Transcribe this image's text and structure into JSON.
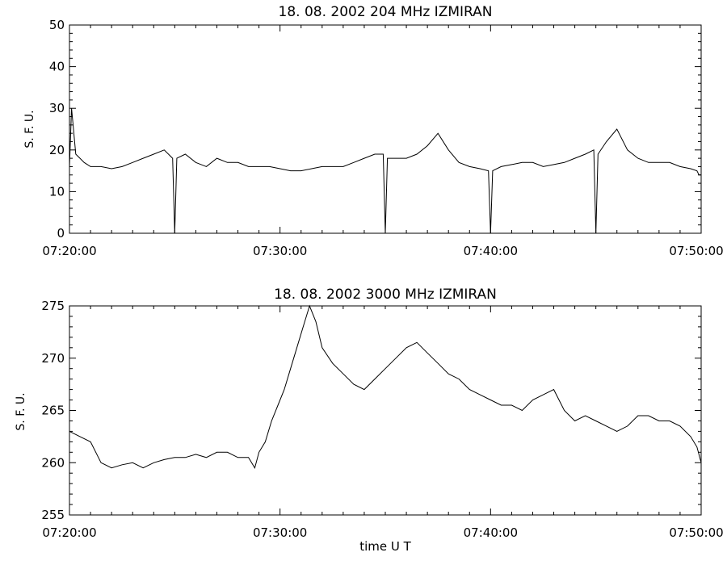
{
  "chart_data": [
    {
      "type": "line",
      "title": "18.  08.  2002    204 MHz    IZMIRAN",
      "xlabel": "",
      "ylabel": "S. F. U.",
      "xlim": [
        "07:20:00",
        "07:50:00"
      ],
      "ylim": [
        0,
        50
      ],
      "x_ticks": [
        "07:20:00",
        "07:30:00",
        "07:40:00",
        "07:50:00"
      ],
      "y_ticks": [
        "0",
        "10",
        "20",
        "30",
        "40",
        "50"
      ],
      "y_tick_values": [
        0,
        10,
        20,
        30,
        40,
        50
      ],
      "x_minor_step_minutes": 1,
      "y_minor_step": 2,
      "grid": false,
      "series": [
        {
          "minutes_x": [
            0.0,
            0.1,
            0.3,
            0.5,
            0.7,
            1.0,
            1.5,
            2.0,
            2.5,
            3.0,
            3.5,
            4.0,
            4.5,
            4.9,
            5.0,
            5.1,
            5.5,
            6.0,
            6.5,
            7.0,
            7.5,
            8.0,
            8.5,
            9.0,
            9.5,
            10.0,
            10.5,
            11.0,
            11.5,
            12.0,
            12.5,
            13.0,
            13.5,
            14.0,
            14.5,
            14.9,
            15.0,
            15.1,
            15.5,
            16.0,
            16.5,
            17.0,
            17.5,
            18.0,
            18.5,
            19.0,
            19.5,
            19.9,
            20.0,
            20.1,
            20.5,
            21.0,
            21.5,
            22.0,
            22.5,
            23.0,
            23.5,
            24.0,
            24.5,
            24.9,
            25.0,
            25.1,
            25.5,
            26.0,
            26.5,
            27.0,
            27.5,
            28.0,
            28.5,
            29.0,
            29.5,
            29.8,
            29.9,
            30.0
          ],
          "values": [
            16,
            30,
            19,
            18,
            17,
            16,
            16,
            15.5,
            16,
            17,
            18,
            19,
            20,
            18,
            0,
            18,
            19,
            17,
            16,
            18,
            17,
            17,
            16,
            16,
            16,
            15.5,
            15,
            15,
            15.5,
            16,
            16,
            16,
            17,
            18,
            19,
            19,
            0,
            18,
            18,
            18,
            19,
            21,
            24,
            20,
            17,
            16,
            15.5,
            15,
            0,
            15,
            16,
            16.5,
            17,
            17,
            16,
            16.5,
            17,
            18,
            19,
            20,
            0,
            19,
            22,
            25,
            20,
            18,
            17,
            17,
            17,
            16,
            15.5,
            15,
            14,
            14
          ]
        }
      ]
    },
    {
      "type": "line",
      "title": "18.  08.  2002    3000 MHz    IZMIRAN",
      "xlabel": "time   U T",
      "ylabel": "S. F. U.",
      "xlim": [
        "07:20:00",
        "07:50:00"
      ],
      "ylim": [
        255,
        275
      ],
      "x_ticks": [
        "07:20:00",
        "07:30:00",
        "07:40:00",
        "07:50:00"
      ],
      "y_ticks": [
        "255",
        "260",
        "265",
        "270",
        "275"
      ],
      "y_tick_values": [
        255,
        260,
        265,
        270,
        275
      ],
      "x_minor_step_minutes": 1,
      "y_minor_step": 1,
      "grid": false,
      "series": [
        {
          "minutes_x": [
            0.0,
            0.5,
            1.0,
            1.5,
            2.0,
            2.5,
            3.0,
            3.5,
            4.0,
            4.5,
            5.0,
            5.5,
            6.0,
            6.5,
            7.0,
            7.5,
            8.0,
            8.5,
            8.8,
            9.0,
            9.3,
            9.6,
            9.9,
            10.2,
            10.5,
            10.8,
            11.1,
            11.4,
            11.7,
            12.0,
            12.5,
            13.0,
            13.5,
            14.0,
            14.5,
            15.0,
            15.5,
            16.0,
            16.5,
            17.0,
            17.5,
            18.0,
            18.5,
            19.0,
            19.5,
            20.0,
            20.5,
            21.0,
            21.5,
            22.0,
            22.5,
            23.0,
            23.5,
            24.0,
            24.5,
            25.0,
            25.5,
            26.0,
            26.5,
            27.0,
            27.5,
            28.0,
            28.5,
            29.0,
            29.5,
            29.8,
            30.0
          ],
          "values": [
            263,
            262.5,
            262,
            260,
            259.5,
            259.8,
            260,
            259.5,
            260,
            260.3,
            260.5,
            260.5,
            260.8,
            260.5,
            261,
            261,
            260.5,
            260.5,
            259.5,
            261,
            262,
            264,
            265.5,
            267,
            269,
            271,
            273,
            275,
            273.5,
            271,
            269.5,
            268.5,
            267.5,
            267,
            268,
            269,
            270,
            271,
            271.5,
            270.5,
            269.5,
            268.5,
            268,
            267,
            266.5,
            266,
            265.5,
            265.5,
            265,
            266,
            266.5,
            267,
            265,
            264,
            264.5,
            264,
            263.5,
            263,
            263.5,
            264.5,
            264.5,
            264,
            264,
            263.5,
            262.5,
            261.5,
            260
          ]
        }
      ]
    }
  ]
}
